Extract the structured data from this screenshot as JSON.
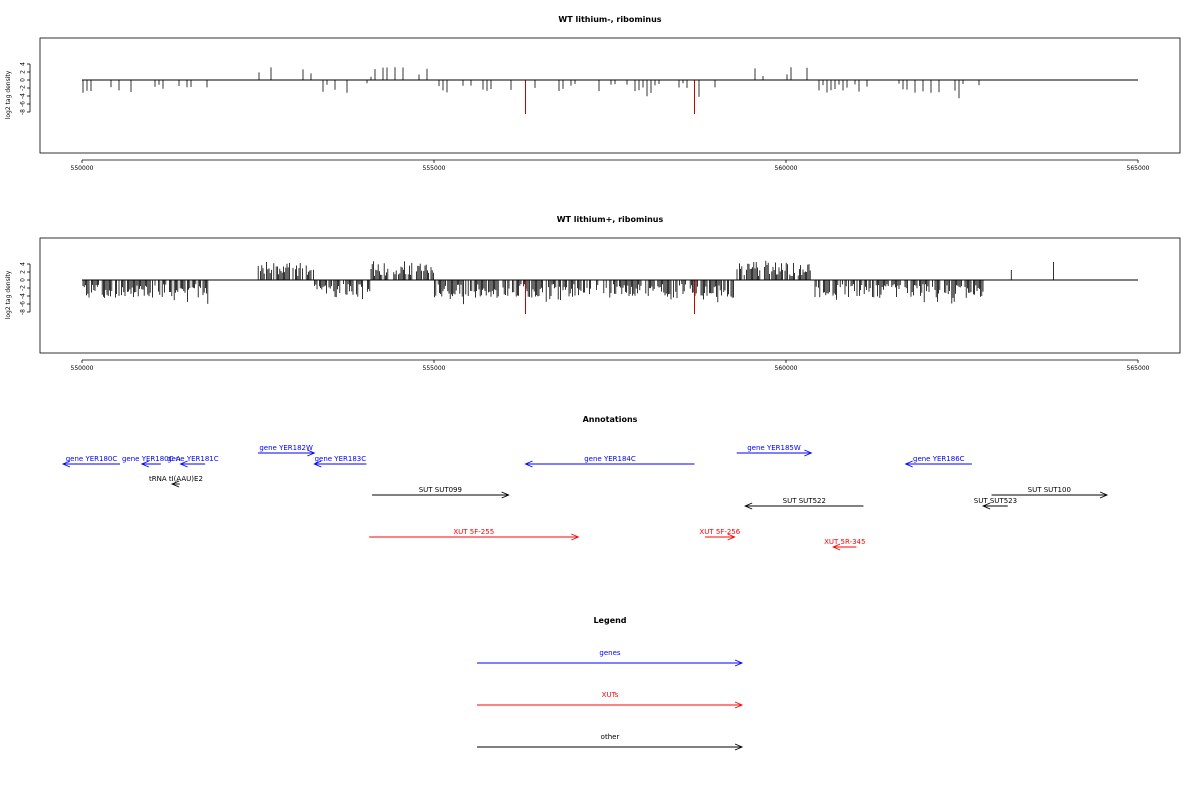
{
  "chart_data": [
    {
      "type": "bar",
      "title": "WT lithium-, ribominus",
      "ylabel": "log2 tag density",
      "xlim": [
        550000,
        565000
      ],
      "ylim": [
        -8,
        4
      ],
      "xticks": [
        "550000",
        "555000",
        "560000",
        "565000"
      ],
      "yticks": [
        "4",
        "2",
        "0",
        "-2",
        "-4",
        "-6",
        "-8"
      ],
      "density": "sparse",
      "highlight_positions": [
        556300,
        558700
      ],
      "highlight_color": "#c00000"
    },
    {
      "type": "bar",
      "title": "WT lithium+, ribominus",
      "ylabel": "log2 tag density",
      "xlim": [
        550000,
        565000
      ],
      "ylim": [
        -8,
        4
      ],
      "xticks": [
        "550000",
        "555000",
        "560000",
        "565000"
      ],
      "yticks": [
        "4",
        "2",
        "0",
        "-2",
        "-4",
        "-6",
        "-8"
      ],
      "density": "dense",
      "highlight_positions": [
        556300,
        558700
      ],
      "highlight_color": "#c00000"
    }
  ],
  "annotations": {
    "title": "Annotations",
    "items": [
      {
        "label": "gene YER180C",
        "start": 550540,
        "end": 549730,
        "row": 1,
        "color": "#0000ff"
      },
      {
        "label": "gene YER180C-A",
        "start": 551120,
        "end": 550850,
        "row": 1,
        "color": "#0000ff"
      },
      {
        "label": "gene YER181C",
        "start": 551750,
        "end": 551400,
        "row": 1,
        "color": "#0000ff"
      },
      {
        "label": "gene YER182W",
        "start": 552500,
        "end": 553300,
        "row": 0,
        "color": "#0000ff"
      },
      {
        "label": "gene YER183C",
        "start": 554040,
        "end": 553300,
        "row": 1,
        "color": "#0000ff"
      },
      {
        "label": "gene YER184C",
        "start": 558700,
        "end": 556300,
        "row": 1,
        "color": "#0000ff"
      },
      {
        "label": "gene YER185W",
        "start": 559300,
        "end": 560360,
        "row": 0,
        "color": "#0000ff"
      },
      {
        "label": "gene YER186C",
        "start": 562640,
        "end": 561700,
        "row": 1,
        "color": "#0000ff"
      },
      {
        "label": "tRNA tI(AAU)E2",
        "start": 551390,
        "end": 551280,
        "row": 2,
        "color": "#000000"
      },
      {
        "label": "SUT SUT099",
        "start": 554120,
        "end": 556060,
        "row": 3,
        "color": "#000000"
      },
      {
        "label": "SUT SUT522",
        "start": 561100,
        "end": 559420,
        "row": 4,
        "color": "#000000"
      },
      {
        "label": "SUT SUT523",
        "start": 563150,
        "end": 562800,
        "row": 4,
        "color": "#000000"
      },
      {
        "label": "SUT SUT100",
        "start": 562920,
        "end": 564560,
        "row": 3,
        "color": "#000000"
      },
      {
        "label": "XUT 5F-255",
        "start": 554080,
        "end": 557050,
        "row": 5,
        "color": "#ff0000"
      },
      {
        "label": "XUT 5F-256",
        "start": 558850,
        "end": 559270,
        "row": 5,
        "color": "#ff0000"
      },
      {
        "label": "XUT 5R-345",
        "start": 561000,
        "end": 560670,
        "row": 6,
        "color": "#ff0000"
      }
    ]
  },
  "legend": {
    "title": "Legend",
    "items": [
      {
        "label": "genes",
        "color": "#0000ff"
      },
      {
        "label": "XUTs",
        "color": "#ff0000"
      },
      {
        "label": "other",
        "color": "#000000"
      }
    ]
  }
}
